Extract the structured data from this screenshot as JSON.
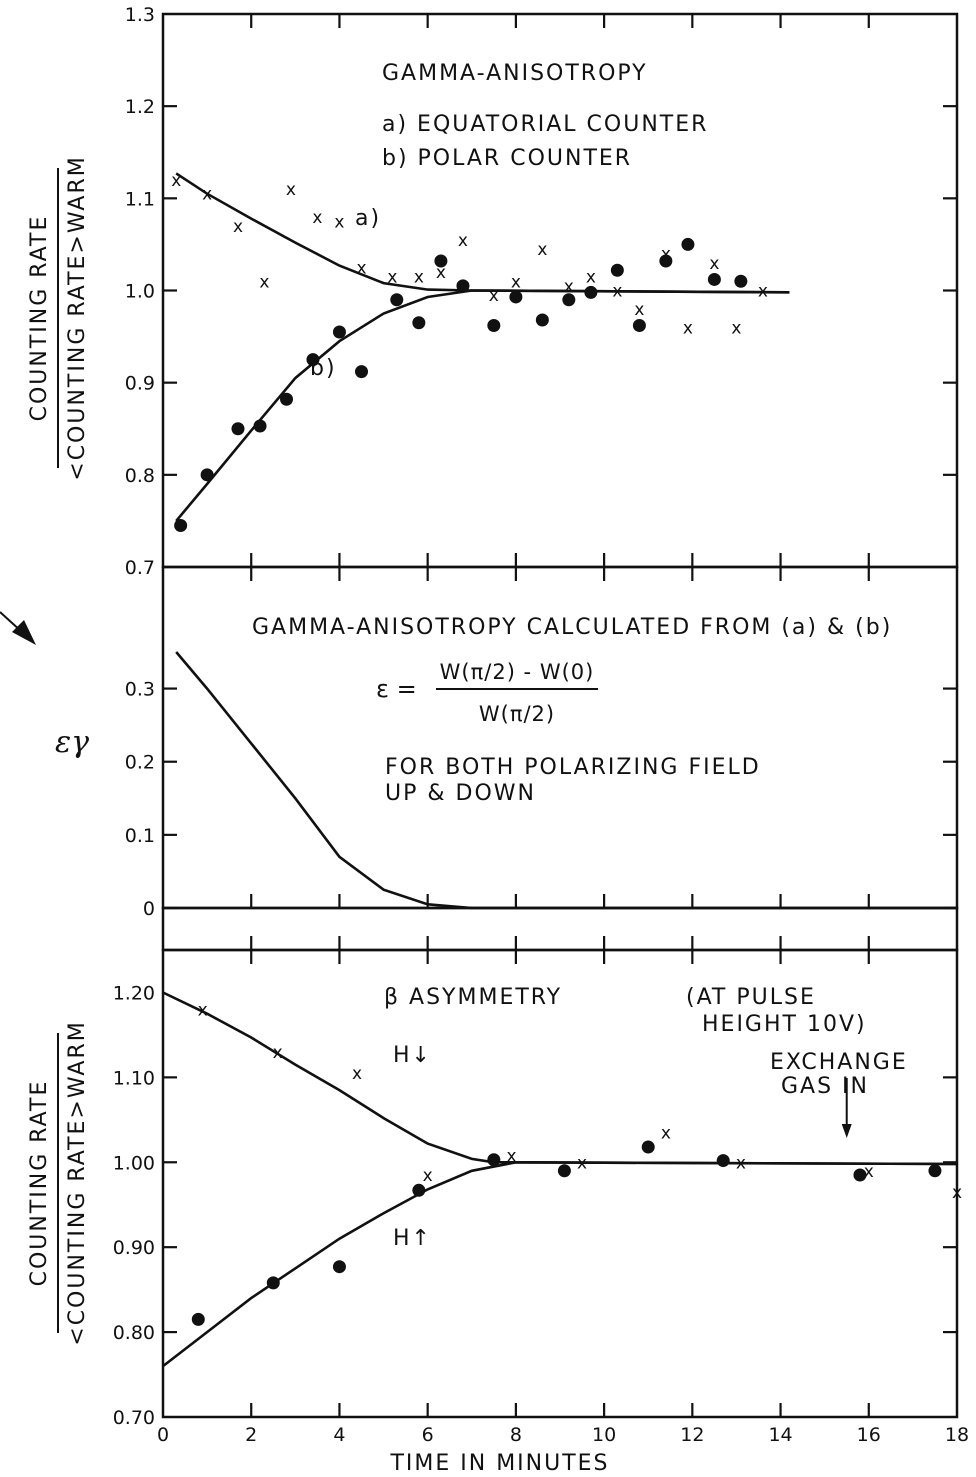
{
  "chart_data": [
    {
      "type": "scatter",
      "annotations": [
        "GAMMA-ANISOTROPY",
        "a) EQUATORIAL COUNTER",
        "b) POLAR COUNTER"
      ],
      "curve_labels": [
        "a)",
        "b)"
      ],
      "ylabel": [
        "COUNTING RATE",
        "<COUNTING RATE>WARM"
      ],
      "ylim": [
        0.7,
        1.3
      ],
      "xlim": [
        0,
        18
      ],
      "yticks": [
        "0.7",
        "0.8",
        "0.9",
        "1.0",
        "1.1",
        "1.2",
        "1.3"
      ],
      "series": [
        {
          "name": "a) EQUATORIAL COUNTER",
          "marker": "x",
          "points": [
            [
              0.3,
              1.12
            ],
            [
              1.0,
              1.105
            ],
            [
              1.7,
              1.07
            ],
            [
              2.3,
              1.01
            ],
            [
              2.9,
              1.11
            ],
            [
              3.5,
              1.08
            ],
            [
              4.0,
              1.075
            ],
            [
              4.5,
              1.025
            ],
            [
              5.2,
              1.015
            ],
            [
              5.8,
              1.015
            ],
            [
              6.3,
              1.02
            ],
            [
              6.8,
              1.055
            ],
            [
              7.5,
              0.995
            ],
            [
              8.0,
              1.01
            ],
            [
              8.6,
              1.045
            ],
            [
              9.2,
              1.005
            ],
            [
              9.7,
              1.015
            ],
            [
              10.3,
              1.0
            ],
            [
              10.8,
              0.98
            ],
            [
              11.4,
              1.04
            ],
            [
              11.9,
              0.96
            ],
            [
              12.5,
              1.03
            ],
            [
              13.0,
              0.96
            ],
            [
              13.6,
              1.0
            ]
          ],
          "fit": [
            [
              0.3,
              1.127
            ],
            [
              1.0,
              1.105
            ],
            [
              2.0,
              1.078
            ],
            [
              3.0,
              1.052
            ],
            [
              4.0,
              1.027
            ],
            [
              5.0,
              1.008
            ],
            [
              6.0,
              1.001
            ],
            [
              7.0,
              1.0
            ],
            [
              14.2,
              0.998
            ]
          ]
        },
        {
          "name": "b) POLAR COUNTER",
          "marker": "dot",
          "points": [
            [
              0.4,
              0.745
            ],
            [
              1.0,
              0.8
            ],
            [
              1.7,
              0.85
            ],
            [
              2.2,
              0.853
            ],
            [
              2.8,
              0.882
            ],
            [
              3.4,
              0.925
            ],
            [
              4.0,
              0.955
            ],
            [
              4.5,
              0.912
            ],
            [
              5.3,
              0.99
            ],
            [
              5.8,
              0.965
            ],
            [
              6.3,
              1.032
            ],
            [
              6.8,
              1.005
            ],
            [
              7.5,
              0.962
            ],
            [
              8.0,
              0.993
            ],
            [
              8.6,
              0.968
            ],
            [
              9.2,
              0.99
            ],
            [
              9.7,
              0.998
            ],
            [
              10.3,
              1.022
            ],
            [
              10.8,
              0.962
            ],
            [
              11.4,
              1.032
            ],
            [
              11.9,
              1.05
            ],
            [
              12.5,
              1.012
            ],
            [
              13.1,
              1.01
            ]
          ],
          "fit": [
            [
              0.3,
              0.75
            ],
            [
              1.0,
              0.79
            ],
            [
              2.0,
              0.848
            ],
            [
              3.0,
              0.905
            ],
            [
              4.0,
              0.945
            ],
            [
              5.0,
              0.975
            ],
            [
              6.0,
              0.993
            ],
            [
              7.0,
              1.0
            ],
            [
              14.2,
              0.998
            ]
          ]
        }
      ]
    },
    {
      "type": "line",
      "ylabel": "εγ",
      "ylim": [
        0,
        0.35
      ],
      "xlim": [
        0,
        18
      ],
      "yticks": [
        "0",
        "0.1",
        "0.2",
        "0.3"
      ],
      "annotations": [
        "GAMMA-ANISOTROPY CALCULATED FROM (a) & (b)",
        "ε = W(π/2) − W(0) / W(π/2)",
        "FOR BOTH POLARIZING FIELD",
        "UP & DOWN"
      ],
      "formula": {
        "lhs": "ε =",
        "numerator": "W(π/2) - W(0)",
        "denominator": "W(π/2)"
      },
      "series": [
        {
          "name": "εγ",
          "points": [
            [
              0.3,
              0.35
            ],
            [
              1.0,
              0.3
            ],
            [
              2.0,
              0.225
            ],
            [
              3.0,
              0.15
            ],
            [
              4.0,
              0.07
            ],
            [
              5.0,
              0.025
            ],
            [
              6.0,
              0.005
            ],
            [
              7.0,
              0.0
            ],
            [
              18.0,
              0.0
            ]
          ]
        }
      ]
    },
    {
      "type": "scatter",
      "annotations": [
        "β ASYMMETRY",
        "(AT PULSE",
        "HEIGHT 10V)",
        "EXCHANGE",
        "GAS IN",
        "H↓",
        "H↑"
      ],
      "ylabel": [
        "COUNTING RATE",
        "<COUNTING RATE>WARM"
      ],
      "xlabel": "TIME IN MINUTES",
      "xlim": [
        0,
        18
      ],
      "ylim": [
        0.7,
        1.25
      ],
      "xticks": [
        "0",
        "2",
        "4",
        "6",
        "8",
        "10",
        "12",
        "14",
        "16",
        "18"
      ],
      "yticks": [
        "0.70",
        "0.80",
        "0.90",
        "1.00",
        "1.10",
        "1.20"
      ],
      "series": [
        {
          "name": "H↓",
          "marker": "x",
          "points": [
            [
              0.9,
              1.18
            ],
            [
              2.6,
              1.13
            ],
            [
              4.4,
              1.105
            ],
            [
              6.0,
              0.985
            ],
            [
              7.9,
              1.008
            ],
            [
              9.5,
              1.0
            ],
            [
              11.4,
              1.035
            ],
            [
              13.1,
              1.0
            ],
            [
              16.0,
              0.99
            ],
            [
              18.0,
              0.965
            ]
          ],
          "fit": [
            [
              0.0,
              1.2
            ],
            [
              1.0,
              1.175
            ],
            [
              2.0,
              1.147
            ],
            [
              3.0,
              1.115
            ],
            [
              4.0,
              1.085
            ],
            [
              5.0,
              1.052
            ],
            [
              6.0,
              1.022
            ],
            [
              7.0,
              1.004
            ],
            [
              7.5,
              1.0
            ],
            [
              18.0,
              0.998
            ]
          ]
        },
        {
          "name": "H↑",
          "marker": "dot",
          "points": [
            [
              0.8,
              0.815
            ],
            [
              2.5,
              0.858
            ],
            [
              4.0,
              0.877
            ],
            [
              5.8,
              0.967
            ],
            [
              7.5,
              1.003
            ],
            [
              9.1,
              0.99
            ],
            [
              11.0,
              1.018
            ],
            [
              12.7,
              1.002
            ],
            [
              15.8,
              0.985
            ],
            [
              17.5,
              0.99
            ]
          ],
          "fit": [
            [
              0.0,
              0.76
            ],
            [
              1.0,
              0.8
            ],
            [
              2.0,
              0.84
            ],
            [
              3.0,
              0.875
            ],
            [
              4.0,
              0.91
            ],
            [
              5.0,
              0.94
            ],
            [
              6.0,
              0.968
            ],
            [
              7.0,
              0.99
            ],
            [
              8.0,
              1.0
            ],
            [
              18.0,
              0.998
            ]
          ]
        }
      ],
      "arrows": [
        {
          "label": "EXCHANGE GAS IN",
          "x": 15.5
        }
      ]
    }
  ]
}
